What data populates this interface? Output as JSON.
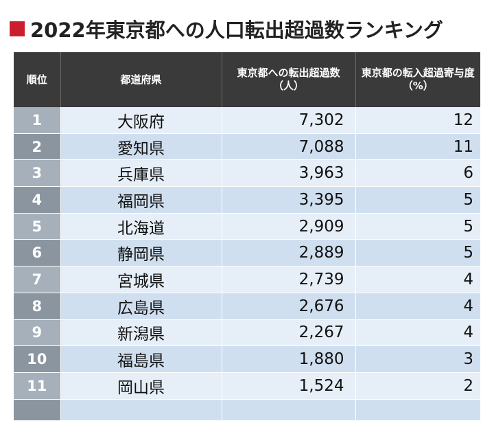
{
  "title": "2022年東京都への人口転出超過数ランキング",
  "headers": {
    "rank": "順位",
    "prefecture": "都道府県",
    "outflow": "東京都への転出超過数（人）",
    "contribution": "東京都の転入超過寄与度（%）"
  },
  "rows": [
    {
      "rank": "1",
      "prefecture": "大阪府",
      "outflow": "7,302",
      "contribution": "12"
    },
    {
      "rank": "2",
      "prefecture": "愛知県",
      "outflow": "7,088",
      "contribution": "11"
    },
    {
      "rank": "3",
      "prefecture": "兵庫県",
      "outflow": "3,963",
      "contribution": "6"
    },
    {
      "rank": "4",
      "prefecture": "福岡県",
      "outflow": "3,395",
      "contribution": "5"
    },
    {
      "rank": "5",
      "prefecture": "北海道",
      "outflow": "2,909",
      "contribution": "5"
    },
    {
      "rank": "6",
      "prefecture": "静岡県",
      "outflow": "2,889",
      "contribution": "5"
    },
    {
      "rank": "7",
      "prefecture": "宮城県",
      "outflow": "2,739",
      "contribution": "4"
    },
    {
      "rank": "8",
      "prefecture": "広島県",
      "outflow": "2,676",
      "contribution": "4"
    },
    {
      "rank": "9",
      "prefecture": "新潟県",
      "outflow": "2,267",
      "contribution": "4"
    },
    {
      "rank": "10",
      "prefecture": "福島県",
      "outflow": "1,880",
      "contribution": "3"
    },
    {
      "rank": "11",
      "prefecture": "岡山県",
      "outflow": "1,524",
      "contribution": "2"
    }
  ],
  "colors": {
    "title_mark": "#cc1f2d",
    "header_bg": "#3a3a3a",
    "row_light": "#e6eef7",
    "row_dark": "#d0dfef"
  }
}
